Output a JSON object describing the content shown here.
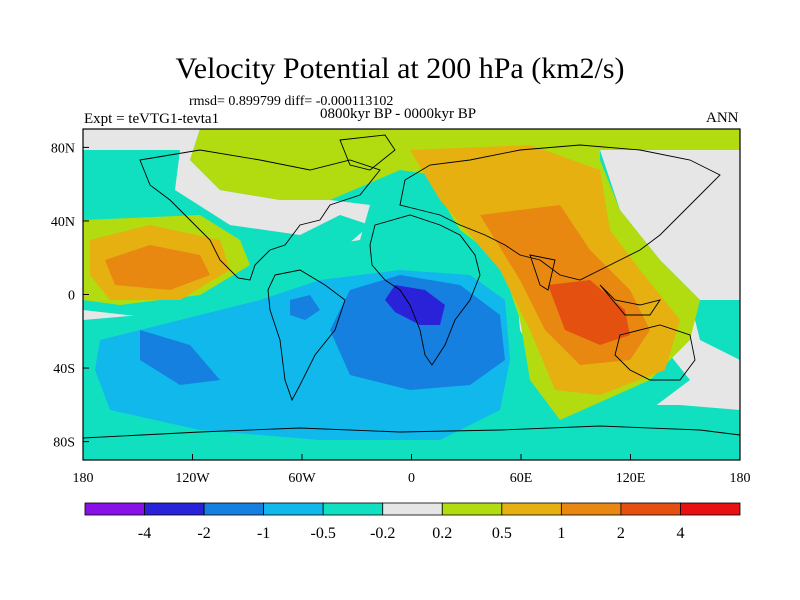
{
  "figure": {
    "title": "Velocity Potential at 200 hPa (km2/s)",
    "stats_line": "rmsd= 0.899799 diff= -0.000113102",
    "left_label": "Expt = teVTG1-tevta1",
    "center_label": "0800kyr BP - 0000kyr BP",
    "right_label": "ANN"
  },
  "axes": {
    "lon_ticks": [
      "180",
      "120W",
      "60W",
      "0",
      "60E",
      "120E",
      "180"
    ],
    "lat_ticks": [
      "80N",
      "40N",
      "0",
      "40S",
      "80S"
    ]
  },
  "chart_data": {
    "type": "heatmap",
    "title": "Velocity Potential at 200 hPa (km2/s)",
    "variable": "Velocity Potential at 200 hPa",
    "units": "km2/s",
    "xlabel": "",
    "ylabel": "",
    "x_range": [
      -180,
      180
    ],
    "y_range": [
      -90,
      90
    ],
    "contour_levels": [
      -4,
      -2,
      -1,
      -0.5,
      -0.2,
      0.2,
      0.5,
      1,
      2,
      4
    ],
    "colorbar_labels": [
      "-4",
      "-2",
      "-1",
      "-0.5",
      "-0.2",
      "0.2",
      "0.5",
      "1",
      "2",
      "4"
    ],
    "colors": [
      "#8a10e8",
      "#2a22d8",
      "#1580e0",
      "#10b8ec",
      "#10e0c0",
      "#e6e6e6",
      "#b2dc10",
      "#e6b010",
      "#e88810",
      "#e45010",
      "#e81010"
    ]
  }
}
